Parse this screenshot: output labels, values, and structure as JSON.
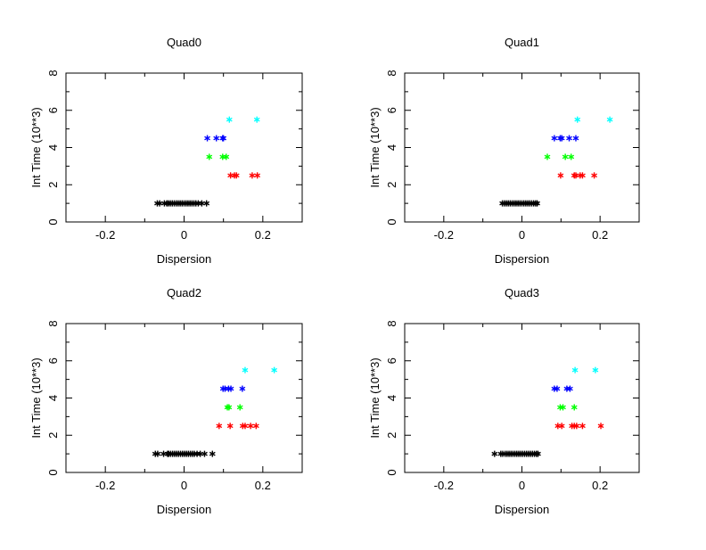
{
  "chart_data": [
    {
      "type": "scatter",
      "title": "Quad0",
      "xlabel": "Dispersion",
      "ylabel": "Int Time (10**3)",
      "xlim": [
        -0.3,
        0.3
      ],
      "ylim": [
        0,
        8
      ],
      "xticks": [
        "-0.2",
        "0",
        "0.2"
      ],
      "yticks": [
        "0",
        "2",
        "4",
        "6",
        "8"
      ],
      "grid": false,
      "series": [
        {
          "color": "#000000",
          "y": 1,
          "x": [
            -0.068,
            -0.062,
            -0.05,
            -0.044,
            -0.04,
            -0.035,
            -0.03,
            -0.025,
            -0.02,
            -0.015,
            -0.01,
            -0.005,
            0,
            0.005,
            0.01,
            0.015,
            0.02,
            0.025,
            0.03,
            0.036,
            0.045,
            0.057
          ]
        },
        {
          "color": "#ff0000",
          "y": 2.5,
          "x": [
            0.118,
            0.128,
            0.133,
            0.173,
            0.186
          ]
        },
        {
          "color": "#00ff00",
          "y": 3.5,
          "x": [
            0.064,
            0.098,
            0.107
          ]
        },
        {
          "color": "#0000ff",
          "y": 4.5,
          "x": [
            0.059,
            0.082,
            0.098,
            0.1
          ]
        },
        {
          "color": "#00ffff",
          "y": 5.5,
          "x": [
            0.115,
            0.185
          ]
        }
      ]
    },
    {
      "type": "scatter",
      "title": "Quad1",
      "xlabel": "Dispersion",
      "ylabel": "Int Time (10**3)",
      "xlim": [
        -0.3,
        0.3
      ],
      "ylim": [
        0,
        8
      ],
      "xticks": [
        "-0.2",
        "0",
        "0.2"
      ],
      "yticks": [
        "0",
        "2",
        "4",
        "6",
        "8"
      ],
      "grid": false,
      "series": [
        {
          "color": "#000000",
          "y": 1,
          "x": [
            -0.05,
            -0.045,
            -0.04,
            -0.035,
            -0.03,
            -0.025,
            -0.02,
            -0.015,
            -0.01,
            -0.005,
            0,
            0.005,
            0.01,
            0.015,
            0.02,
            0.025,
            0.03,
            0.035,
            0.039
          ]
        },
        {
          "color": "#ff0000",
          "y": 2.5,
          "x": [
            0.099,
            0.134,
            0.138,
            0.149,
            0.155,
            0.185
          ]
        },
        {
          "color": "#00ff00",
          "y": 3.5,
          "x": [
            0.065,
            0.111,
            0.126
          ]
        },
        {
          "color": "#0000ff",
          "y": 4.5,
          "x": [
            0.083,
            0.098,
            0.102,
            0.121,
            0.138
          ]
        },
        {
          "color": "#00ffff",
          "y": 5.5,
          "x": [
            0.142,
            0.225
          ]
        }
      ]
    },
    {
      "type": "scatter",
      "title": "Quad2",
      "xlabel": "Dispersion",
      "ylabel": "Int Time (10**3)",
      "xlim": [
        -0.3,
        0.3
      ],
      "ylim": [
        0,
        8
      ],
      "xticks": [
        "-0.2",
        "0",
        "0.2"
      ],
      "yticks": [
        "0",
        "2",
        "4",
        "6",
        "8"
      ],
      "grid": false,
      "series": [
        {
          "color": "#000000",
          "y": 1,
          "x": [
            -0.073,
            -0.067,
            -0.052,
            -0.042,
            -0.039,
            -0.034,
            -0.029,
            -0.024,
            -0.019,
            -0.014,
            -0.009,
            -0.004,
            0.001,
            0.006,
            0.011,
            0.016,
            0.021,
            0.026,
            0.033,
            0.041,
            0.052,
            0.072
          ]
        },
        {
          "color": "#ff0000",
          "y": 2.5,
          "x": [
            0.089,
            0.117,
            0.149,
            0.155,
            0.169,
            0.183
          ]
        },
        {
          "color": "#00ff00",
          "y": 3.5,
          "x": [
            0.11,
            0.114,
            0.142
          ]
        },
        {
          "color": "#0000ff",
          "y": 4.5,
          "x": [
            0.099,
            0.104,
            0.113,
            0.119,
            0.148
          ]
        },
        {
          "color": "#00ffff",
          "y": 5.5,
          "x": [
            0.155,
            0.229
          ]
        }
      ]
    },
    {
      "type": "scatter",
      "title": "Quad3",
      "xlabel": "Dispersion",
      "ylabel": "Int Time (10**3)",
      "xlim": [
        -0.3,
        0.3
      ],
      "ylim": [
        0,
        8
      ],
      "xticks": [
        "-0.2",
        "0",
        "0.2"
      ],
      "yticks": [
        "0",
        "2",
        "4",
        "6",
        "8"
      ],
      "grid": false,
      "series": [
        {
          "color": "#000000",
          "y": 1,
          "x": [
            -0.07,
            -0.054,
            -0.049,
            -0.043,
            -0.038,
            -0.033,
            -0.028,
            -0.023,
            -0.018,
            -0.013,
            -0.008,
            -0.003,
            0.002,
            0.007,
            0.012,
            0.017,
            0.022,
            0.027,
            0.032,
            0.037,
            0.041
          ]
        },
        {
          "color": "#ff0000",
          "y": 2.5,
          "x": [
            0.092,
            0.102,
            0.128,
            0.134,
            0.14,
            0.155,
            0.202
          ]
        },
        {
          "color": "#00ff00",
          "y": 3.5,
          "x": [
            0.098,
            0.105,
            0.134
          ]
        },
        {
          "color": "#0000ff",
          "y": 4.5,
          "x": [
            0.083,
            0.09,
            0.115,
            0.123
          ]
        },
        {
          "color": "#00ffff",
          "y": 5.5,
          "x": [
            0.136,
            0.188
          ]
        }
      ]
    }
  ]
}
